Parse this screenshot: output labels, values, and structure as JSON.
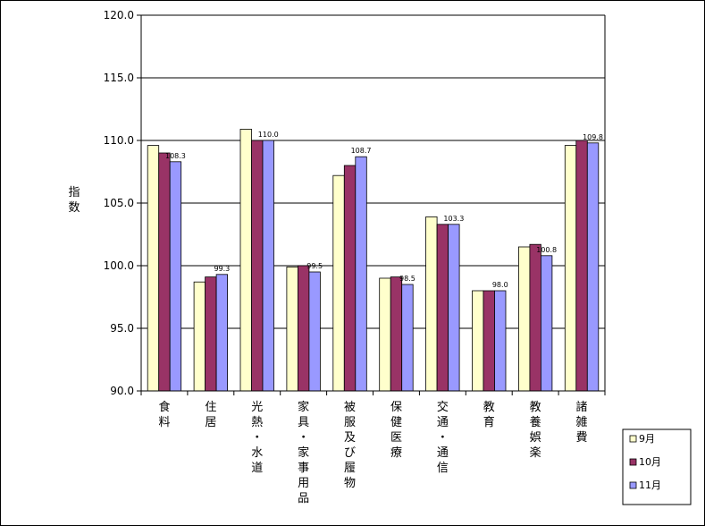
{
  "chart_data": {
    "type": "bar",
    "ylabel": "指数",
    "ylim": [
      90,
      120
    ],
    "ytick_step": 5,
    "ytick_labels": [
      "90.0",
      "95.0",
      "100.0",
      "105.0",
      "110.0",
      "115.0",
      "120.0"
    ],
    "grid": true,
    "legend_position": "bottom-right",
    "categories": [
      "食料",
      "住居",
      "光熱・水道",
      "家具・家事用品",
      "被服及び履物",
      "保健医療",
      "交通・通信",
      "教育",
      "教養娯楽",
      "諸雑費"
    ],
    "series": [
      {
        "name": "9月",
        "color": "#FFFFCC",
        "values": [
          109.6,
          98.7,
          110.9,
          99.9,
          107.2,
          99.0,
          103.9,
          98.0,
          101.5,
          109.6
        ]
      },
      {
        "name": "10月",
        "color": "#993366",
        "values": [
          109.0,
          99.1,
          110.0,
          100.0,
          108.0,
          99.1,
          103.3,
          98.0,
          101.7,
          110.0
        ]
      },
      {
        "name": "11月",
        "color": "#9999FF",
        "values": [
          108.3,
          99.3,
          110.0,
          99.5,
          108.7,
          98.5,
          103.3,
          98.0,
          100.8,
          109.8
        ]
      }
    ],
    "data_labels": {
      "series_index": 2,
      "labels": [
        "108.3",
        "99.3",
        "110.0",
        "99.5",
        "108.7",
        "98.5",
        "103.3",
        "98.0",
        "100.8",
        "109.8"
      ]
    }
  }
}
